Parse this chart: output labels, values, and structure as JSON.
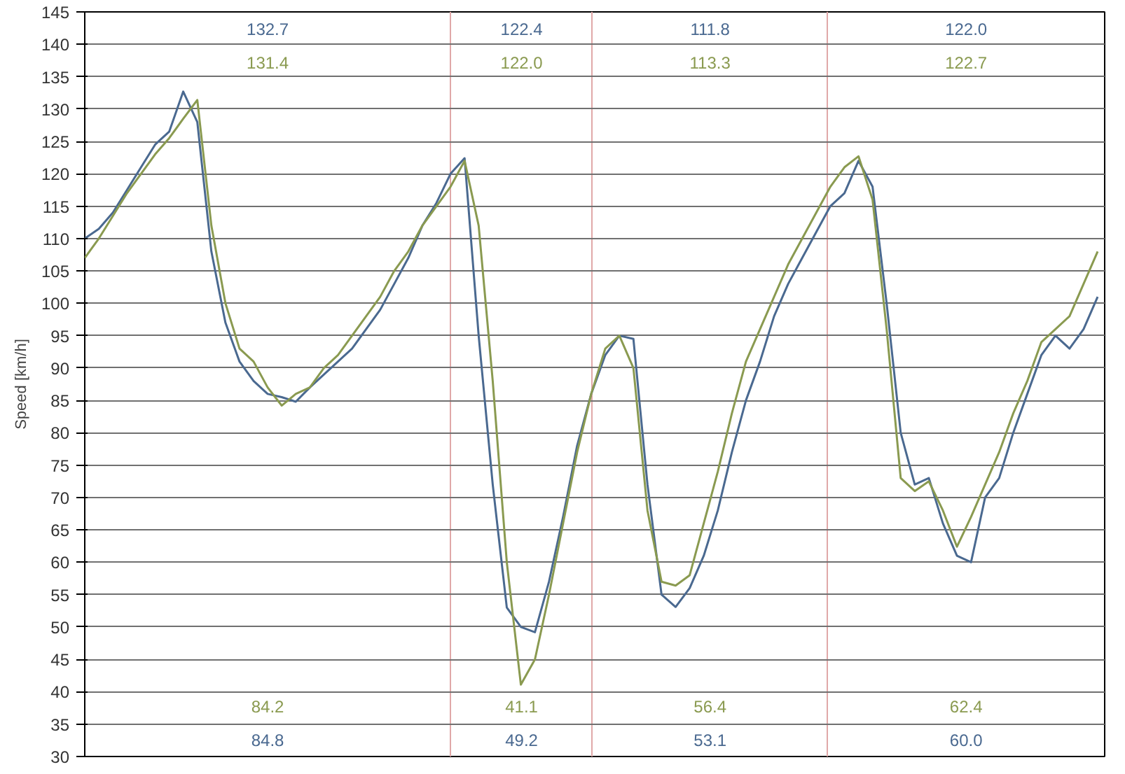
{
  "chart_data": {
    "type": "line",
    "ylabel": "Speed [km/h]",
    "categories": [
      null,
      null,
      null,
      null,
      null,
      null,
      null,
      null,
      null,
      null,
      null,
      null,
      null,
      null,
      null,
      null,
      null,
      null,
      null,
      null,
      null,
      null,
      null,
      null,
      null,
      null,
      null,
      null,
      null,
      null,
      null,
      null,
      null,
      null,
      null,
      null,
      null,
      null,
      null,
      null,
      null,
      null,
      null,
      null,
      null,
      null,
      null,
      null,
      null,
      null,
      null,
      null,
      null,
      null,
      null,
      null,
      null,
      null,
      null,
      null,
      null,
      null,
      null,
      null,
      null,
      null,
      null,
      null,
      null,
      null,
      null,
      null,
      null
    ],
    "series": [
      {
        "color": "#4a6990",
        "values": [
          110,
          111.5,
          114,
          117.5,
          121,
          124.5,
          126.5,
          132.7,
          128,
          108,
          97,
          91,
          88,
          86,
          85.5,
          84.8,
          87,
          89,
          91,
          93,
          96,
          99,
          103,
          107,
          112,
          115.5,
          120,
          122.4,
          95,
          72,
          53,
          50,
          49.2,
          57,
          67,
          78,
          86,
          92,
          95,
          94.5,
          72,
          55,
          53.1,
          56,
          61,
          68,
          77,
          85,
          91,
          98,
          103,
          107,
          111,
          115,
          117,
          122.0,
          118,
          100,
          80,
          72,
          73,
          66,
          61,
          60.0,
          70,
          73,
          80,
          86,
          92,
          95,
          93,
          96,
          101
        ]
      },
      {
        "color": "#8a9a50",
        "values": [
          107,
          110,
          113.5,
          117,
          120,
          123,
          125.5,
          128.5,
          131.4,
          112,
          100,
          93,
          91,
          87,
          84.2,
          86,
          87,
          90,
          92,
          95,
          98,
          101,
          105,
          108,
          112,
          115,
          118,
          122.0,
          112,
          88,
          60,
          41.1,
          45,
          55,
          66,
          77,
          86,
          93,
          95,
          90,
          68,
          57,
          56.4,
          58,
          66,
          74,
          83,
          91,
          96,
          101,
          106,
          110,
          114,
          118,
          121,
          122.7,
          116,
          96,
          73,
          71,
          72.5,
          68,
          62.4,
          67,
          72,
          77,
          83,
          88,
          94,
          96,
          98,
          103,
          108
        ]
      }
    ],
    "ylim": [
      30,
      145
    ],
    "yticks": [
      30,
      35,
      40,
      45,
      50,
      55,
      60,
      65,
      70,
      75,
      80,
      85,
      90,
      95,
      100,
      105,
      110,
      115,
      120,
      125,
      130,
      135,
      140,
      145
    ],
    "grid": true,
    "line_style": "solid",
    "marker": "none",
    "annotations": [
      "132.7",
      "131.4",
      "84.2",
      "84.8",
      "122.4",
      "122.0",
      "41.1",
      "49.2",
      "111.8",
      "113.3",
      "56.4",
      "53.1",
      "122.0",
      "122.7",
      "62.4",
      "60.0"
    ]
  }
}
